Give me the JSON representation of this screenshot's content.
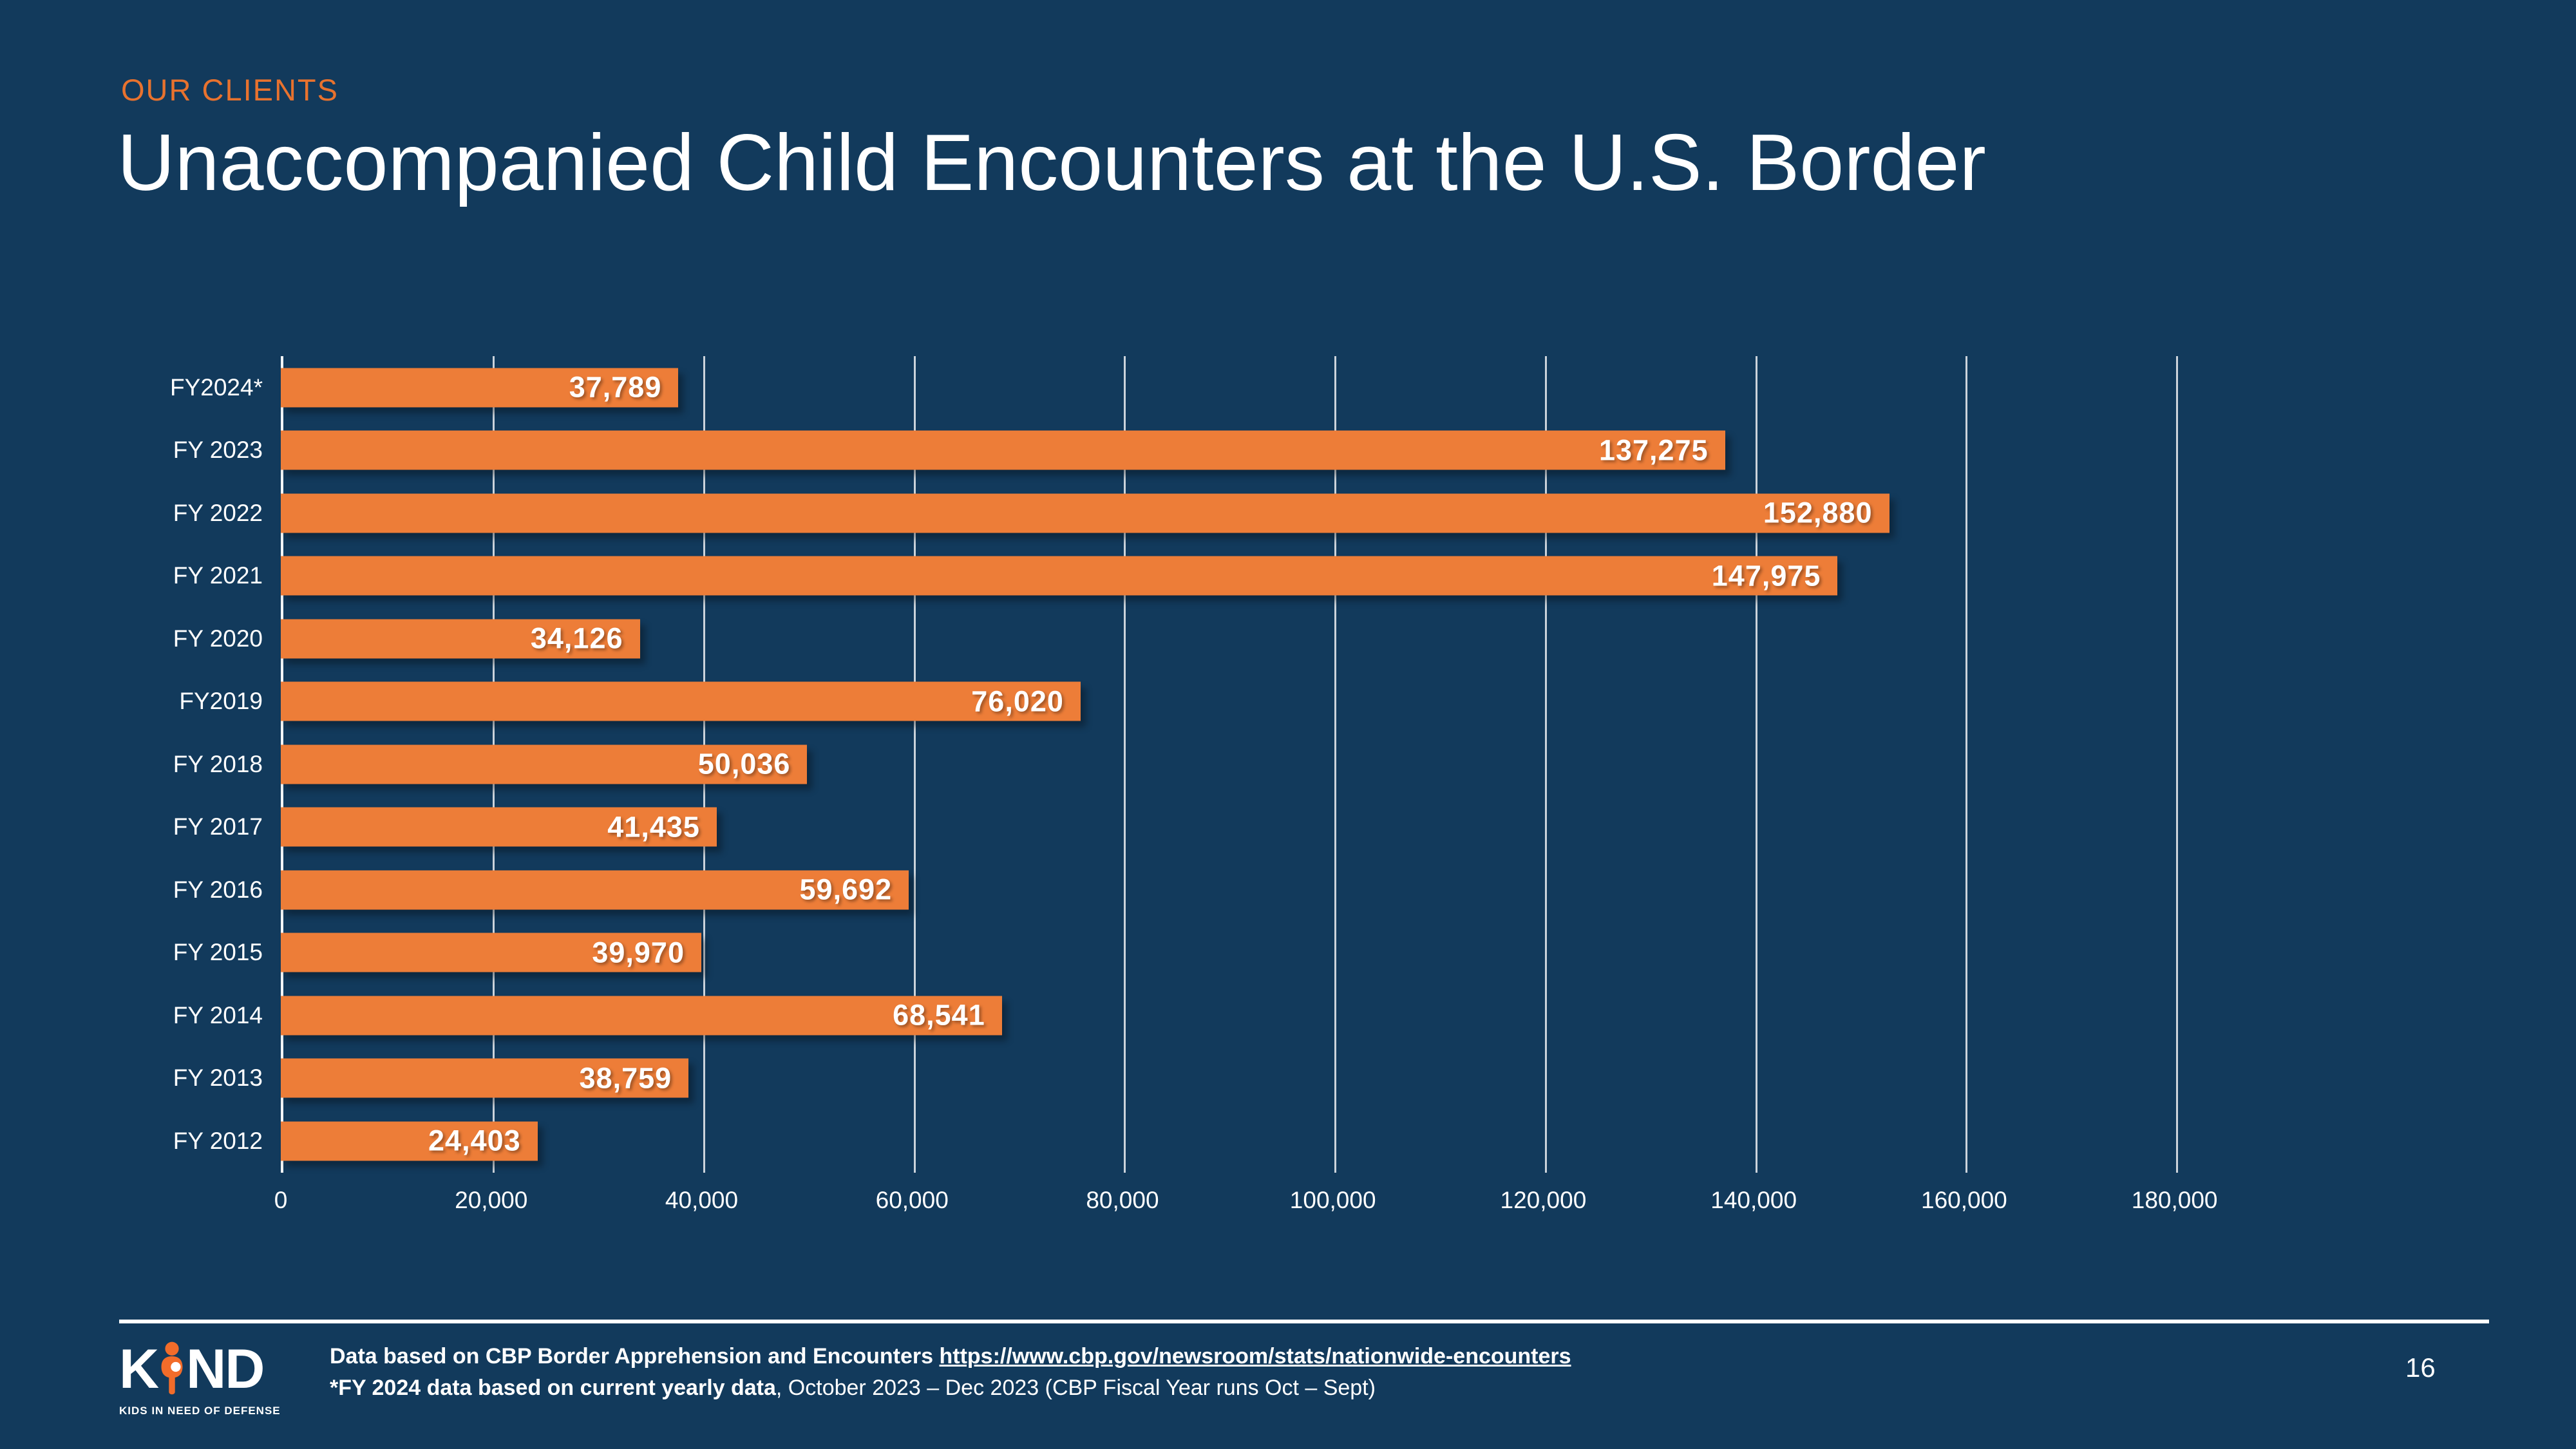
{
  "slide": {
    "eyebrow": "OUR CLIENTS",
    "title": "Unaccompanied Child Encounters at the U.S. Border",
    "page_number": "16",
    "background_color": "#123A5C",
    "accent_orange": "#ED7D38"
  },
  "chart_data": {
    "type": "bar",
    "orientation": "horizontal",
    "title": "Unaccompanied Child Encounters at the U.S. Border",
    "categories": [
      "FY2024*",
      "FY 2023",
      "FY 2022",
      "FY 2021",
      "FY 2020",
      "FY2019",
      "FY 2018",
      "FY 2017",
      "FY 2016",
      "FY 2015",
      "FY 2014",
      "FY 2013",
      "FY 2012"
    ],
    "values": [
      37789,
      137275,
      152880,
      147975,
      34126,
      76020,
      50036,
      41435,
      59692,
      39970,
      68541,
      38759,
      24403
    ],
    "value_labels": [
      "37,789",
      "137,275",
      "152,880",
      "147,975",
      "34,126",
      "76,020",
      "50,036",
      "41,435",
      "59,692",
      "39,970",
      "68,541",
      "38,759",
      "24,403"
    ],
    "x_ticks": [
      "0",
      "20,000",
      "40,000",
      "60,000",
      "80,000",
      "100,000",
      "120,000",
      "140,000",
      "160,000",
      "180,000"
    ],
    "tick_values": [
      0,
      20000,
      40000,
      60000,
      80000,
      100000,
      120000,
      140000,
      160000,
      180000
    ],
    "xlim": [
      0,
      190000
    ],
    "xlabel": "",
    "ylabel": "",
    "grid": true,
    "gridline_color": "#FFFFFF",
    "bar_color": "#ED7D38",
    "value_label_position": "inside-right",
    "legend": "none"
  },
  "footer": {
    "source_prefix": "Data based on CBP Border Apprehension and Encounters ",
    "source_link": "https://www.cbp.gov/newsroom/stats/nationwide-encounters",
    "footnote_bold": "*FY 2024 data based on current yearly data",
    "footnote_rest": ", October 2023 – Dec 2023 (CBP Fiscal Year runs Oct – Sept)",
    "logo": {
      "letter_k": "K",
      "letters_nd": "ND",
      "tagline": "KIDS IN NEED OF DEFENSE",
      "person_color": "#F26C2A"
    }
  }
}
